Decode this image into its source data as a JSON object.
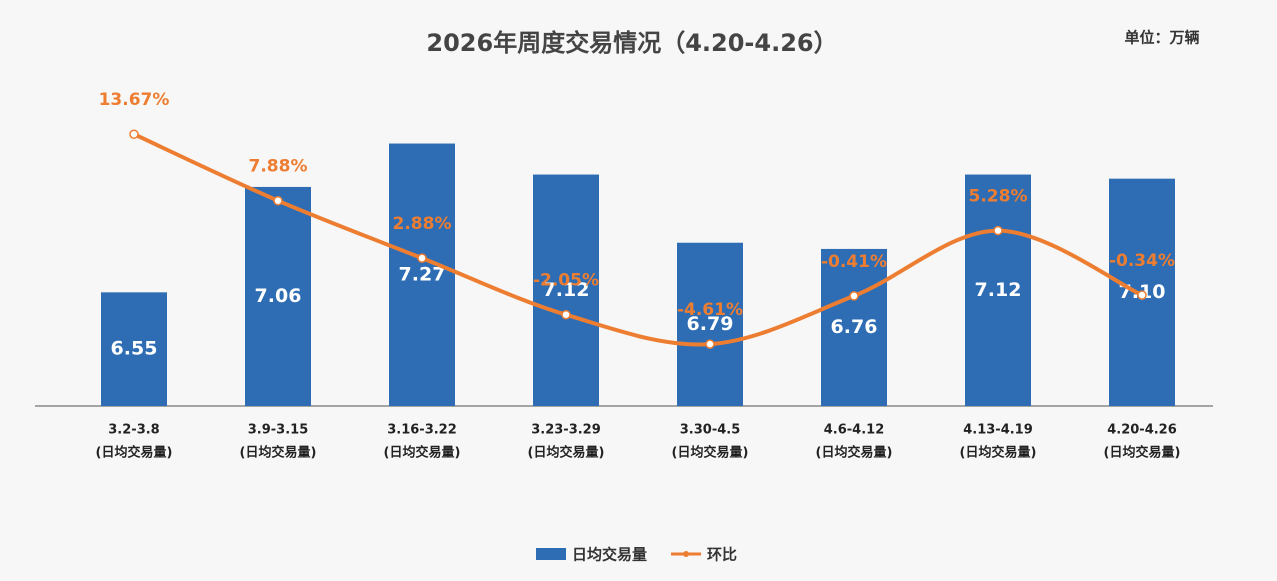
{
  "chart_data": {
    "type": "bar_line",
    "title": "2026年周度交易情况（4.20-4.26）",
    "unit_note": "单位：万辆",
    "categories": [
      "3.2-3.8",
      "3.9-3.15",
      "3.16-3.22",
      "3.23-3.29",
      "3.30-4.5",
      "4.6-4.12",
      "4.13-4.19",
      "4.20-4.26"
    ],
    "category_note": "(日均交易量)",
    "ylim": [
      6,
      7.5
    ],
    "y2lim": [
      -10,
      17
    ],
    "series": [
      {
        "name": "日均交易量",
        "color": "#2e6db4",
        "type": "bar",
        "values": [
          6.55,
          7.06,
          7.27,
          7.12,
          6.79,
          6.76,
          7.12,
          7.1
        ],
        "value_labels": [
          "6.55",
          "7.06",
          "7.27",
          "7.12",
          "6.79",
          "6.76",
          "7.12",
          "7.10"
        ]
      },
      {
        "name": "环比",
        "color": "#ed7d31",
        "type": "line",
        "axis": "y2",
        "values": [
          13.67,
          7.88,
          2.88,
          -2.05,
          -4.61,
          -0.41,
          5.28,
          -0.34
        ],
        "value_labels": [
          "13.67%",
          "7.88%",
          "2.88%",
          "-2.05%",
          "-4.61%",
          "-0.41%",
          "5.28%",
          "-0.34%"
        ]
      }
    ]
  }
}
